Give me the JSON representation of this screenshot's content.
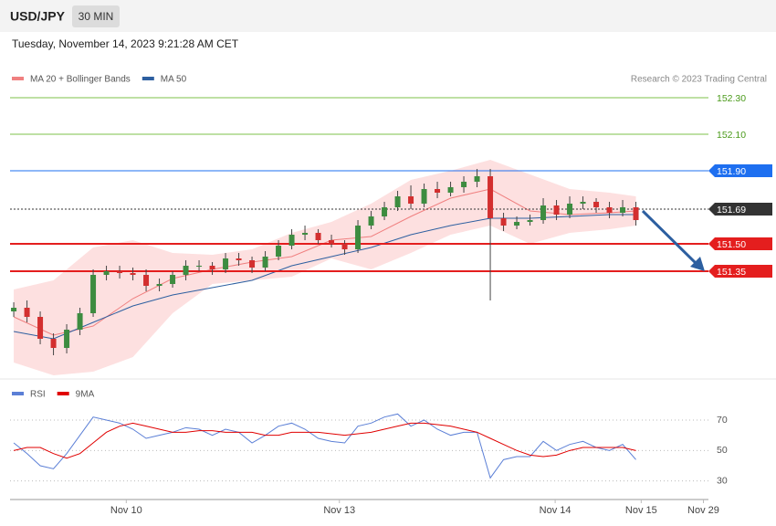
{
  "header": {
    "symbol": "USD/JPY",
    "interval": "30 MIN",
    "timestamp": "Tuesday, November 14, 2023 9:21:28 AM CET"
  },
  "chart_data": [
    {
      "type": "candlestick",
      "credit": "Research © 2023 Trading Central",
      "xlim": [
        -0.28,
        52.48
      ],
      "ylim": [
        150.76,
        152.36
      ],
      "up_color": "#3d8c40",
      "down_color": "#d32f2f",
      "open": [
        151.13,
        151.15,
        151.1,
        150.98,
        150.93,
        151.03,
        151.12,
        151.33,
        151.35,
        151.34,
        151.33,
        151.27,
        151.28,
        151.33,
        151.38,
        151.38,
        151.36,
        151.42,
        151.41,
        151.37,
        151.43,
        151.49,
        151.55,
        151.56,
        151.52,
        151.5,
        151.47,
        151.6,
        151.65,
        151.7,
        151.76,
        151.72,
        151.8,
        151.78,
        151.81,
        151.84,
        151.87,
        151.64,
        151.6,
        151.62,
        151.63,
        151.71,
        151.66,
        151.72,
        151.73,
        151.7,
        151.67,
        151.7
      ],
      "high": [
        151.18,
        151.19,
        151.13,
        151.01,
        151.06,
        151.15,
        151.36,
        151.38,
        151.38,
        151.37,
        151.36,
        151.31,
        151.35,
        151.41,
        151.41,
        151.4,
        151.45,
        151.45,
        151.43,
        151.46,
        151.52,
        151.58,
        151.6,
        151.58,
        151.55,
        151.52,
        151.63,
        151.68,
        151.73,
        151.79,
        151.82,
        151.83,
        151.84,
        151.84,
        151.87,
        151.91,
        151.91,
        151.67,
        151.65,
        151.66,
        151.75,
        151.74,
        151.76,
        151.76,
        151.75,
        151.73,
        151.74,
        151.73
      ],
      "low": [
        151.1,
        151.07,
        150.95,
        150.89,
        150.9,
        151.0,
        151.1,
        151.3,
        151.31,
        151.3,
        151.24,
        151.24,
        151.26,
        151.3,
        151.35,
        151.33,
        151.34,
        151.38,
        151.34,
        151.35,
        151.41,
        151.47,
        151.52,
        151.5,
        151.48,
        151.44,
        151.45,
        151.58,
        151.63,
        151.68,
        151.69,
        151.7,
        151.75,
        151.76,
        151.78,
        151.81,
        151.19,
        151.57,
        151.58,
        151.6,
        151.61,
        151.63,
        151.64,
        151.69,
        151.67,
        151.64,
        151.65,
        151.6
      ],
      "close": [
        151.15,
        151.1,
        150.98,
        150.93,
        151.03,
        151.12,
        151.33,
        151.35,
        151.34,
        151.33,
        151.27,
        151.28,
        151.33,
        151.38,
        151.38,
        151.36,
        151.42,
        151.41,
        151.37,
        151.43,
        151.49,
        151.55,
        151.56,
        151.52,
        151.5,
        151.47,
        151.6,
        151.65,
        151.7,
        151.76,
        151.72,
        151.8,
        151.78,
        151.81,
        151.84,
        151.87,
        151.64,
        151.6,
        151.62,
        151.63,
        151.71,
        151.66,
        151.72,
        151.73,
        151.7,
        151.67,
        151.7,
        151.63
      ],
      "series": [
        {
          "name": "MA 20 + Bollinger Bands",
          "color": "#f08080",
          "band_color": "#fde0e0",
          "x": [
            0,
            3,
            6,
            9,
            12,
            15,
            18,
            21,
            24,
            27,
            30,
            33,
            36,
            39,
            42,
            45,
            47
          ],
          "values": [
            151.1,
            151.0,
            151.05,
            151.2,
            151.31,
            151.36,
            151.4,
            151.43,
            151.52,
            151.54,
            151.65,
            151.75,
            151.8,
            151.68,
            151.66,
            151.67,
            151.68
          ],
          "upper": [
            151.25,
            151.3,
            151.48,
            151.52,
            151.45,
            151.44,
            151.47,
            151.56,
            151.62,
            151.72,
            151.85,
            151.9,
            151.96,
            151.88,
            151.8,
            151.78,
            151.76
          ],
          "lower": [
            150.85,
            150.78,
            150.8,
            150.88,
            151.12,
            151.28,
            151.3,
            151.32,
            151.42,
            151.36,
            151.45,
            151.55,
            151.6,
            151.5,
            151.56,
            151.58,
            151.6
          ]
        },
        {
          "name": "MA 50",
          "color": "#2d5fa0",
          "x": [
            0,
            3,
            6,
            9,
            12,
            15,
            18,
            21,
            24,
            27,
            30,
            33,
            36,
            39,
            42,
            45,
            47
          ],
          "values": [
            151.02,
            150.98,
            151.07,
            151.16,
            151.22,
            151.26,
            151.3,
            151.38,
            151.43,
            151.48,
            151.55,
            151.6,
            151.64,
            151.64,
            151.65,
            151.66,
            151.66
          ]
        }
      ],
      "levels": [
        {
          "value": 152.3,
          "label": "152.30",
          "color": "#7cc24a",
          "style": "solid",
          "width": 1,
          "tag": false
        },
        {
          "value": 152.1,
          "label": "152.10",
          "color": "#7cc24a",
          "style": "solid",
          "width": 1,
          "tag": false
        },
        {
          "value": 151.9,
          "label": "151.90",
          "color": "#1e6ff0",
          "style": "solid",
          "width": 1,
          "tag": true
        },
        {
          "value": 151.69,
          "label": "151.69",
          "color": "#333333",
          "style": "dotted",
          "width": 1,
          "tag": true
        },
        {
          "value": 151.5,
          "label": "151.50",
          "color": "#e41e1e",
          "style": "solid",
          "width": 2,
          "tag": true
        },
        {
          "value": 151.35,
          "label": "151.35",
          "color": "#e41e1e",
          "style": "solid",
          "width": 2,
          "tag": true
        }
      ]
    },
    {
      "type": "line",
      "xlim": [
        -0.28,
        52.48
      ],
      "ylim": [
        22,
        94
      ],
      "yticks": [
        30,
        50,
        70
      ],
      "grid": true,
      "xticks": [
        {
          "value": 8.5,
          "label": "Nov 10"
        },
        {
          "value": 24.6,
          "label": "Nov 13"
        },
        {
          "value": 40.9,
          "label": "Nov 14"
        },
        {
          "value": 47.4,
          "label": "Nov 15"
        },
        {
          "value": 52.1,
          "label": "Nov 29"
        }
      ],
      "series": [
        {
          "name": "RSI",
          "color": "#5b7fd6",
          "values": [
            55,
            48,
            40,
            38,
            48,
            60,
            72,
            70,
            68,
            64,
            58,
            60,
            62,
            65,
            64,
            60,
            64,
            62,
            55,
            60,
            66,
            68,
            64,
            58,
            56,
            55,
            66,
            68,
            72,
            74,
            66,
            70,
            64,
            60,
            62,
            62,
            32,
            44,
            46,
            46,
            56,
            50,
            54,
            56,
            52,
            50,
            54,
            44
          ]
        },
        {
          "name": "9MA",
          "color": "#e00000",
          "values": [
            50,
            52,
            52,
            48,
            45,
            48,
            55,
            62,
            66,
            68,
            66,
            64,
            62,
            62,
            63,
            63,
            62,
            62,
            62,
            60,
            60,
            62,
            62,
            62,
            61,
            60,
            61,
            62,
            64,
            66,
            68,
            68,
            67,
            66,
            64,
            62,
            58,
            54,
            50,
            47,
            46,
            47,
            50,
            52,
            52,
            52,
            52,
            50
          ]
        }
      ]
    }
  ]
}
